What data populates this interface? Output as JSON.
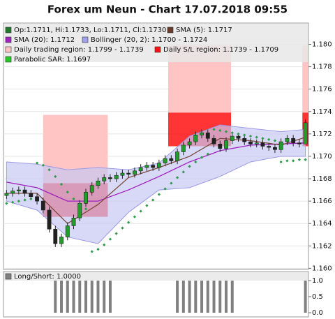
{
  "chart_data": {
    "type": "candlestick",
    "title": "Forex um Neun - Chart 17.07.2018 09:55",
    "xlim": [
      -0.5,
      49.5
    ],
    "ylim": [
      1.1599,
      1.1819
    ],
    "yticks": [
      {
        "value": 1.16,
        "label": "1.160"
      },
      {
        "value": 1.162,
        "label": "1.162"
      },
      {
        "value": 1.164,
        "label": "1.164"
      },
      {
        "value": 1.166,
        "label": "1.166"
      },
      {
        "value": 1.168,
        "label": "1.168"
      },
      {
        "value": 1.17,
        "label": "1.170"
      },
      {
        "value": 1.172,
        "label": "1.172"
      },
      {
        "value": 1.174,
        "label": "1.174"
      },
      {
        "value": 1.176,
        "label": "1.176"
      },
      {
        "value": 1.178,
        "label": "1.178"
      },
      {
        "value": 1.18,
        "label": "1.180"
      }
    ],
    "grid": true,
    "candles": {
      "up_color": "#1f9e2a",
      "down_color": "#202020",
      "open": [
        1.1665,
        1.1667,
        1.1669,
        1.167,
        1.1667,
        1.1664,
        1.166,
        1.1652,
        1.1635,
        1.1622,
        1.1628,
        1.1638,
        1.1645,
        1.1658,
        1.1668,
        1.1674,
        1.1678,
        1.1681,
        1.168,
        1.1683,
        1.1685,
        1.1684,
        1.1687,
        1.169,
        1.1692,
        1.169,
        1.1694,
        1.1698,
        1.1696,
        1.1704,
        1.171,
        1.1713,
        1.1719,
        1.1721,
        1.1716,
        1.1711,
        1.1707,
        1.1714,
        1.1718,
        1.1716,
        1.1713,
        1.1711,
        1.1712,
        1.1709,
        1.1708,
        1.1706,
        1.1713,
        1.1716,
        1.1712,
        1.1711
      ],
      "high": [
        1.167,
        1.1672,
        1.1673,
        1.1673,
        1.167,
        1.1667,
        1.1663,
        1.1655,
        1.1638,
        1.1631,
        1.1641,
        1.1648,
        1.1661,
        1.1671,
        1.1677,
        1.1681,
        1.1684,
        1.1684,
        1.1686,
        1.1688,
        1.1688,
        1.169,
        1.1693,
        1.1695,
        1.1695,
        1.1697,
        1.1701,
        1.1701,
        1.1707,
        1.1713,
        1.1716,
        1.1722,
        1.1724,
        1.1724,
        1.1719,
        1.1714,
        1.1717,
        1.1721,
        1.1721,
        1.1719,
        1.1716,
        1.1715,
        1.1715,
        1.1712,
        1.1711,
        1.1716,
        1.1719,
        1.1719,
        1.1715,
        1.1733
      ],
      "low": [
        1.1662,
        1.1664,
        1.1666,
        1.1664,
        1.1661,
        1.1657,
        1.1649,
        1.1632,
        1.1619,
        1.1619,
        1.1625,
        1.1635,
        1.1642,
        1.1655,
        1.1665,
        1.1671,
        1.1675,
        1.1677,
        1.1677,
        1.168,
        1.1681,
        1.1681,
        1.1684,
        1.1687,
        1.1687,
        1.1687,
        1.1691,
        1.1693,
        1.1693,
        1.1701,
        1.1707,
        1.171,
        1.1716,
        1.1713,
        1.1708,
        1.1704,
        1.1704,
        1.1711,
        1.1713,
        1.171,
        1.1708,
        1.1708,
        1.1706,
        1.1705,
        1.1703,
        1.1703,
        1.171,
        1.1709,
        1.1708,
        1.1711
      ],
      "close": [
        1.1667,
        1.1669,
        1.167,
        1.1667,
        1.1664,
        1.166,
        1.1652,
        1.1635,
        1.1622,
        1.1628,
        1.1638,
        1.1645,
        1.1658,
        1.1668,
        1.1674,
        1.1678,
        1.1681,
        1.168,
        1.1683,
        1.1685,
        1.1684,
        1.1687,
        1.169,
        1.1692,
        1.169,
        1.1694,
        1.1698,
        1.1696,
        1.1704,
        1.171,
        1.1713,
        1.1719,
        1.1721,
        1.1716,
        1.1711,
        1.1707,
        1.1714,
        1.1718,
        1.1716,
        1.1713,
        1.1711,
        1.1712,
        1.1709,
        1.1708,
        1.1706,
        1.1713,
        1.1716,
        1.1712,
        1.1711,
        1.173
      ]
    },
    "indicator_x": [
      0,
      5,
      10,
      15,
      20,
      25,
      30,
      35,
      40,
      45,
      49
    ],
    "sma5": {
      "color": "#7a4a3a",
      "values": [
        1.1667,
        1.1667,
        1.164,
        1.1657,
        1.1681,
        1.169,
        1.17,
        1.1716,
        1.1714,
        1.171,
        1.1717
      ]
    },
    "sma20": {
      "color": "#a020c0",
      "values": [
        1.1677,
        1.1672,
        1.166,
        1.166,
        1.167,
        1.1682,
        1.1695,
        1.1705,
        1.171,
        1.1711,
        1.1712
      ]
    },
    "bollinger": {
      "color": "#c8c8f4",
      "edge": "#9a9ae6",
      "upper": [
        1.1695,
        1.1693,
        1.1688,
        1.169,
        1.1688,
        1.1694,
        1.1718,
        1.1728,
        1.1725,
        1.1722,
        1.1724
      ],
      "lower": [
        1.166,
        1.1652,
        1.1628,
        1.1622,
        1.165,
        1.167,
        1.1672,
        1.1682,
        1.1695,
        1.17,
        1.17
      ]
    },
    "sar": {
      "color": "#2e9a4a",
      "values": [
        1.1658,
        1.1659,
        1.166,
        1.1661,
        1.1662,
        1.1694,
        1.1692,
        1.1688,
        1.1682,
        1.1675,
        1.1668,
        1.1662,
        1.1657,
        1.1653,
        1.1615,
        1.1617,
        1.1621,
        1.1626,
        1.1631,
        1.1636,
        1.1641,
        1.1646,
        1.1651,
        1.1656,
        1.1661,
        1.1666,
        1.1671,
        1.1676,
        1.1681,
        1.1686,
        1.1691,
        1.1695,
        1.1699,
        1.1702,
        1.1724,
        1.1723,
        1.1722,
        1.1721,
        1.172,
        1.1719,
        1.1718,
        1.1717,
        1.1716,
        1.1715,
        1.1714,
        1.1695,
        1.1696,
        1.1696,
        1.1697,
        1.1697
      ]
    },
    "regions": {
      "trading_color": "#ffc4c4",
      "sl_color": "#ff1010",
      "days": [
        {
          "from": 6,
          "to": 16.6,
          "trading": [
            1.1737,
            1.1676
          ],
          "sl": [
            1.1676,
            1.1646
          ]
        },
        {
          "from": 26.5,
          "to": 36.8,
          "trading": [
            1.1799,
            1.1739
          ],
          "sl": [
            1.1739,
            1.1709
          ]
        },
        {
          "from": 48.5,
          "to": 49.5,
          "trading": [
            1.1799,
            1.1739
          ],
          "sl": [
            1.1739,
            1.1709
          ]
        }
      ]
    },
    "legend": [
      {
        "text": "Op:1.1711, Hi:1.1733, Lo:1.1711, Cl:1.1730",
        "color": "#1f7a2a"
      },
      {
        "text": "SMA (5): 1.1717",
        "color": "#6a3a2a"
      },
      {
        "text": "SMA (20): 1.1712",
        "color": "#a020c0"
      },
      {
        "text": "Bollinger (20, 2): 1.1700 - 1.1724",
        "color": "#a0a0ee"
      },
      {
        "text": "Daily trading region: 1.1799 - 1.1739",
        "color": "#ffc4c4"
      },
      {
        "text": "Daily S/L region: 1.1739 - 1.1709",
        "color": "#ff1010"
      },
      {
        "text": "Parabolic SAR: 1.1697",
        "color": "#22cc22"
      }
    ],
    "lower_panel": {
      "title": "Long/Short: 1.0000",
      "color": "#808080",
      "ylim": [
        -0.13,
        1.28
      ],
      "yticks": [
        {
          "value": 0,
          "label": "0.0"
        },
        {
          "value": 0.5,
          "label": "0.5"
        },
        {
          "value": 1,
          "label": "1.0"
        }
      ],
      "values": [
        0,
        0,
        0,
        0,
        0,
        0,
        0,
        0,
        1,
        1,
        1,
        1,
        1,
        1,
        1,
        1,
        1,
        1,
        0,
        0,
        0,
        0,
        0,
        0,
        0,
        0,
        0,
        0,
        1,
        1,
        1,
        1,
        1,
        1,
        1,
        1,
        1,
        1,
        0,
        0,
        0,
        0,
        0,
        0,
        0,
        0,
        0,
        0,
        0,
        1
      ]
    }
  }
}
